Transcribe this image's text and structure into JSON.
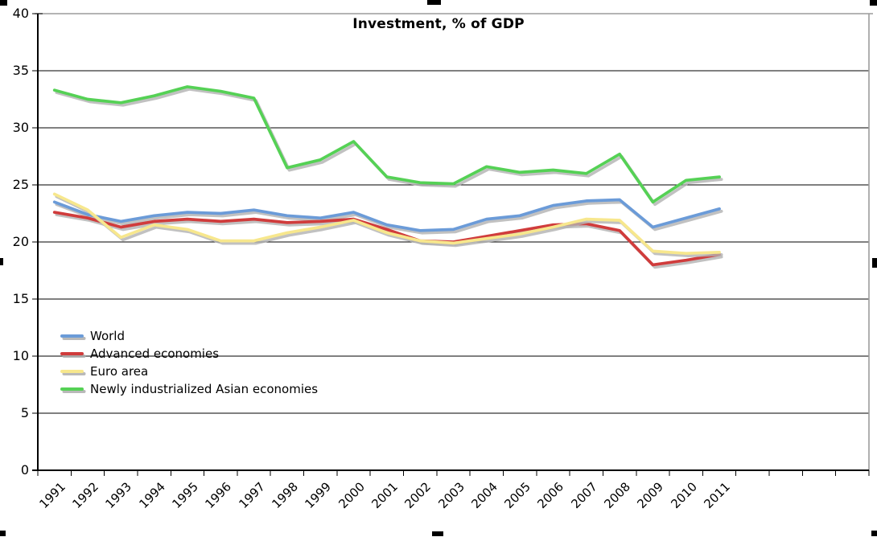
{
  "chart_title": "Investment, % of GDP",
  "legend": [
    {
      "label": "World",
      "color": "#6B9BD8"
    },
    {
      "label": "Advanced economies",
      "color": "#D03C3C"
    },
    {
      "label": "Euro area",
      "color": "#F7E78D"
    },
    {
      "label": "Newly industrialized Asian economies",
      "color": "#55D155"
    }
  ],
  "colors": {
    "background": "#FFFFFF",
    "gridline": "#000000",
    "axis": "#000000",
    "plot_border": "#9C9C9C",
    "line_shadow": "#B2B2B2",
    "selection_handle": "#000000",
    "text": "#000000"
  },
  "chart_data": {
    "type": "line",
    "title": "Investment, % of GDP",
    "x": [
      1991,
      1992,
      1993,
      1994,
      1995,
      1996,
      1997,
      1998,
      1999,
      2000,
      2001,
      2002,
      2003,
      2004,
      2005,
      2006,
      2007,
      2008,
      2009,
      2010,
      2011
    ],
    "series": [
      {
        "name": "World",
        "color": "#6B9BD8",
        "values": [
          23.5,
          22.4,
          21.8,
          22.3,
          22.6,
          22.5,
          22.8,
          22.3,
          22.1,
          22.6,
          21.5,
          21.0,
          21.1,
          22.0,
          22.3,
          23.2,
          23.6,
          23.7,
          21.3,
          22.1,
          22.9
        ]
      },
      {
        "name": "Advanced economies",
        "color": "#D03C3C",
        "values": [
          22.6,
          22.1,
          21.3,
          21.8,
          22.0,
          21.8,
          22.0,
          21.7,
          21.8,
          22.0,
          21.1,
          20.1,
          20.0,
          20.5,
          21.0,
          21.5,
          21.6,
          21.0,
          18.0,
          18.4,
          18.9
        ]
      },
      {
        "name": "Euro area",
        "color": "#F7E78D",
        "values": [
          24.2,
          22.8,
          20.4,
          21.5,
          21.1,
          20.1,
          20.1,
          20.8,
          21.3,
          21.9,
          20.8,
          20.1,
          19.9,
          20.3,
          20.7,
          21.3,
          22.0,
          21.9,
          19.2,
          19.0,
          19.1
        ]
      },
      {
        "name": "Newly industrialized Asian economies",
        "color": "#55D155",
        "values": [
          33.3,
          32.5,
          32.2,
          32.8,
          33.6,
          33.2,
          32.6,
          26.5,
          27.2,
          28.8,
          25.7,
          25.2,
          25.1,
          26.6,
          26.1,
          26.3,
          26.0,
          27.7,
          23.5,
          25.4,
          25.7
        ]
      }
    ],
    "xlabel": "",
    "ylabel": "",
    "ylim": [
      0,
      40
    ],
    "y_ticks": [
      0,
      5,
      10,
      15,
      20,
      25,
      30,
      35,
      40
    ],
    "x_axis_total_categories": 25,
    "grid": "horizontal",
    "legend_position": "inside-middle-left",
    "note_visible_axis": "x-axis tick marks continue unlabeled past 2011 to the right edge of the plot"
  }
}
